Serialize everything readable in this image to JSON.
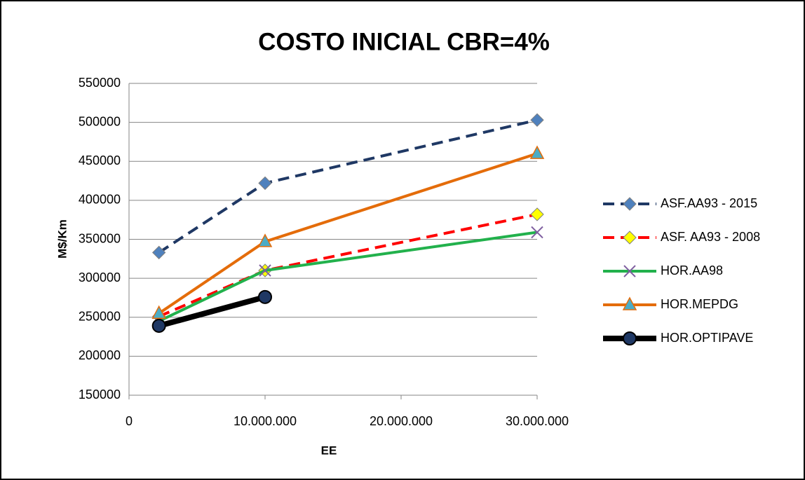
{
  "chart_data": {
    "type": "line",
    "title": "COSTO INICIAL CBR=4%",
    "x_label": "EE",
    "y_label": "M$/Km",
    "x": [
      2200000,
      10000000,
      30000000
    ],
    "series": [
      {
        "name": "ASF.AA93 - 2015",
        "color": "#1f3864",
        "marker_color": "#4f81bd",
        "marker": "diamond",
        "dashed": true,
        "width": 4,
        "values": [
          333000,
          422000,
          503000
        ]
      },
      {
        "name": "ASF. AA93 - 2008",
        "color": "#ff0000",
        "marker_color": "#ffff00",
        "marker": "diamond",
        "dashed": true,
        "width": 4,
        "values": [
          251000,
          310000,
          382000
        ]
      },
      {
        "name": "HOR.AA98",
        "color": "#22b14c",
        "marker_color": "#7f5fa0",
        "marker": "x",
        "dashed": false,
        "width": 4,
        "values": [
          245000,
          310000,
          359000
        ]
      },
      {
        "name": "HOR.MEPDG",
        "color": "#e46c0a",
        "marker_color": "#4bacc6",
        "marker": "triangle",
        "dashed": false,
        "width": 4,
        "values": [
          255000,
          347000,
          460000
        ]
      },
      {
        "name": "HOR.OPTIPAVE",
        "color": "#000000",
        "marker_color": "#1f3864",
        "marker": "circle",
        "dashed": false,
        "width": 8,
        "values": [
          239000,
          276000,
          null
        ]
      }
    ],
    "xlim": [
      0,
      30000000
    ],
    "xticks": [
      0,
      {
        "value": 10000000,
        "label": "10.000.000"
      },
      {
        "value": 20000000,
        "label": "20.000.000"
      },
      {
        "value": 30000000,
        "label": "30.000.000"
      }
    ],
    "ylim": [
      150000,
      550000
    ],
    "yticks": [
      150000,
      200000,
      250000,
      300000,
      350000,
      400000,
      450000,
      500000,
      550000
    ],
    "grid": true,
    "legend": "right"
  }
}
